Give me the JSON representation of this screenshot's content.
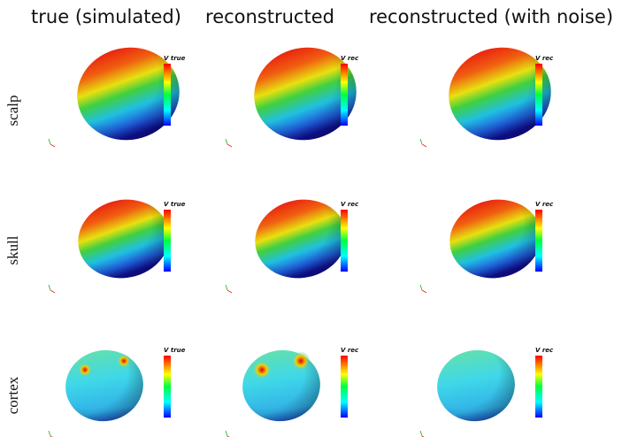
{
  "columns": [
    {
      "title": "true (simulated)",
      "colorbar_label": "V true"
    },
    {
      "title": "reconstructed",
      "colorbar_label": "V rec"
    },
    {
      "title": "reconstructed (with noise)",
      "colorbar_label": "V rec"
    }
  ],
  "rows": [
    {
      "label": "scalp"
    },
    {
      "label": "skull"
    },
    {
      "label": "cortex"
    }
  ]
}
